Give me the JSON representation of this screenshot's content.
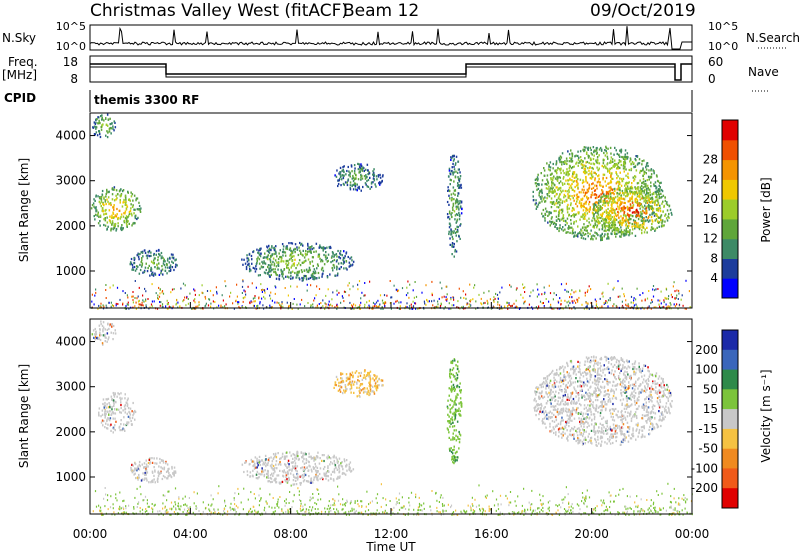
{
  "header": {
    "station": "Christmas Valley West (fitACF)",
    "beam": "Beam 12",
    "date": "09/Oct/2019"
  },
  "strip_panels": {
    "nsky": {
      "label": "N.Sky",
      "ticks": [
        "10^5",
        "10^0"
      ],
      "right_label": "N.Search",
      "right_ticks": [
        "10^5",
        "10^0"
      ]
    },
    "freq": {
      "label": "Freq.",
      "unit": "[MHz]",
      "ticks": [
        "18",
        "8"
      ],
      "right_label": "Nave",
      "right_ticks": [
        "60",
        "0"
      ]
    },
    "cpid": {
      "label": "CPID",
      "value": "themis 3300 RF"
    }
  },
  "chart_data": [
    {
      "type": "heatmap",
      "name": "power",
      "xlabel": "",
      "ylabel": "Slant Range [km]",
      "xlim": [
        0,
        24
      ],
      "ylim": [
        180,
        4500
      ],
      "yticks": [
        "1000",
        "2000",
        "3000",
        "4000"
      ],
      "colorbar": {
        "label": "Power [dB]",
        "ticks": [
          "4",
          "8",
          "12",
          "16",
          "20",
          "24",
          "28"
        ],
        "colors": [
          "#0000ff",
          "#1c3c9c",
          "#3d8a66",
          "#5fa63a",
          "#9ccc2a",
          "#f0c800",
          "#f59400",
          "#f05000",
          "#e00000"
        ]
      },
      "regions": [
        {
          "t": [
            0.05,
            1.0
          ],
          "r": [
            3950,
            4500
          ],
          "level": 14
        },
        {
          "t": [
            0.0,
            2.0
          ],
          "r": [
            1900,
            2900
          ],
          "level": 20
        },
        {
          "t": [
            1.5,
            3.5
          ],
          "r": [
            900,
            1500
          ],
          "level": 12
        },
        {
          "t": [
            6.0,
            10.5
          ],
          "r": [
            800,
            1650
          ],
          "level": 14
        },
        {
          "t": [
            9.6,
            11.7
          ],
          "r": [
            2800,
            3400
          ],
          "level": 11
        },
        {
          "t": [
            14.2,
            14.8
          ],
          "r": [
            1300,
            3700
          ],
          "level": 12
        },
        {
          "t": [
            17.6,
            22.8
          ],
          "r": [
            1700,
            3800
          ],
          "level": 21
        },
        {
          "t": [
            20.0,
            23.2
          ],
          "r": [
            1800,
            2900
          ],
          "level": 24
        }
      ]
    },
    {
      "type": "heatmap",
      "name": "velocity",
      "xlabel": "Time UT",
      "ylabel": "Slant Range [km]",
      "xlim": [
        0,
        24
      ],
      "ylim": [
        180,
        4500
      ],
      "xticks": [
        "00:00",
        "04:00",
        "08:00",
        "12:00",
        "16:00",
        "20:00",
        "00:00"
      ],
      "yticks": [
        "1000",
        "2000",
        "3000",
        "4000"
      ],
      "colorbar": {
        "label": "Velocity [m s⁻¹]",
        "ticks": [
          "200",
          "100",
          "50",
          "15",
          "-15",
          "-50",
          "-100",
          "-200"
        ],
        "colors": [
          "#1b2aa8",
          "#3a66bb",
          "#2e8a4a",
          "#7cc43a",
          "#c8c8c8",
          "#f5c242",
          "#f08a20",
          "#f05a1a",
          "#e00000"
        ]
      },
      "regions": [
        {
          "t": [
            0.05,
            1.0
          ],
          "r": [
            3950,
            4500
          ],
          "level": 0
        },
        {
          "t": [
            0.3,
            1.8
          ],
          "r": [
            2000,
            2900
          ],
          "level": 0
        },
        {
          "t": [
            1.5,
            3.5
          ],
          "r": [
            900,
            1450
          ],
          "level": 0
        },
        {
          "t": [
            6.0,
            10.5
          ],
          "r": [
            850,
            1600
          ],
          "level": 0
        },
        {
          "t": [
            9.6,
            11.7
          ],
          "r": [
            2800,
            3400
          ],
          "level": -20
        },
        {
          "t": [
            14.2,
            14.8
          ],
          "r": [
            1300,
            3700
          ],
          "level": 30
        },
        {
          "t": [
            17.6,
            23.2
          ],
          "r": [
            1700,
            3700
          ],
          "level": 0
        }
      ]
    }
  ]
}
